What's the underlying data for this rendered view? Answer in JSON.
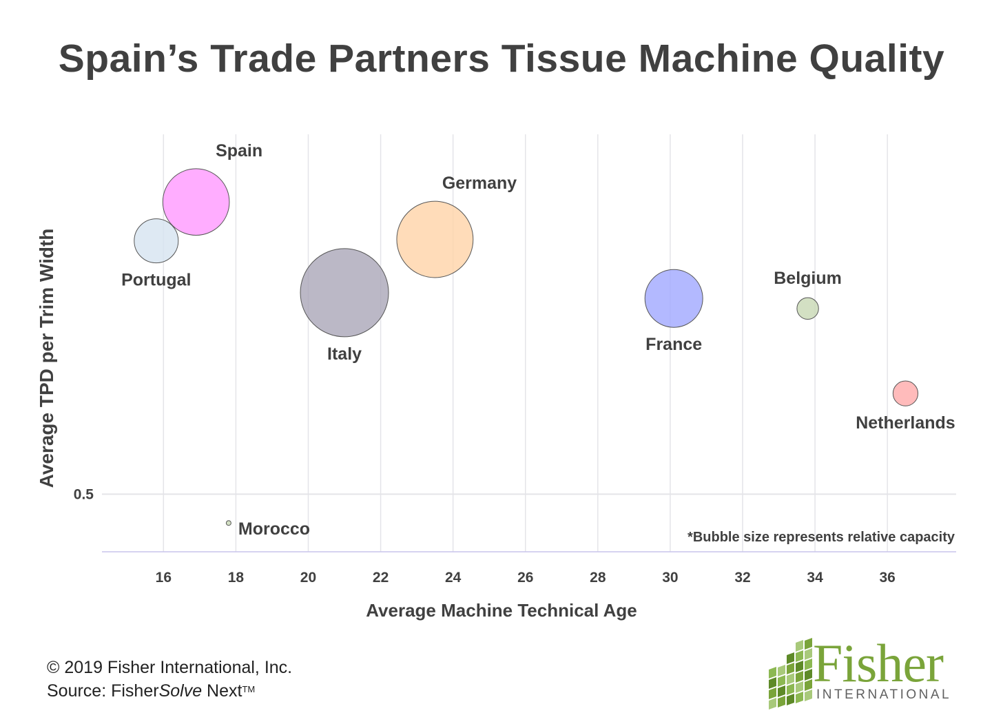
{
  "chart_data": {
    "type": "scatter",
    "title": "Spain’s Trade Partners Tissue Machine Quality",
    "xlabel": "Average Machine Technical Age",
    "ylabel": "Average TPD per Trim Width",
    "xticks": [
      16,
      18,
      20,
      22,
      24,
      26,
      28,
      30,
      32,
      34,
      36
    ],
    "xlim": [
      14.3,
      37.9
    ],
    "yticks": [
      0.5
    ],
    "ylim": [
      0.46,
      0.75
    ],
    "grid": true,
    "annotation": "*Bubble size represents relative capacity",
    "series": [
      {
        "name": "Spain",
        "x": 16.9,
        "y": 0.703,
        "size": 0.57,
        "color": "#ff99ff",
        "label_pos": "above-right"
      },
      {
        "name": "Portugal",
        "x": 15.8,
        "y": 0.676,
        "size": 0.25,
        "color": "#d6e4f0",
        "label_pos": "below"
      },
      {
        "name": "Italy",
        "x": 21.0,
        "y": 0.64,
        "size": 1.0,
        "color": "#aaa6b8",
        "label_pos": "below"
      },
      {
        "name": "Germany",
        "x": 23.5,
        "y": 0.677,
        "size": 0.75,
        "color": "#ffd3a8",
        "label_pos": "above-right"
      },
      {
        "name": "France",
        "x": 30.1,
        "y": 0.636,
        "size": 0.43,
        "color": "#a0a8ff",
        "label_pos": "below"
      },
      {
        "name": "Belgium",
        "x": 33.8,
        "y": 0.629,
        "size": 0.06,
        "color": "#c8d8b4",
        "label_pos": "above"
      },
      {
        "name": "Netherlands",
        "x": 36.5,
        "y": 0.57,
        "size": 0.08,
        "color": "#ffaaaa",
        "label_pos": "below"
      },
      {
        "name": "Morocco",
        "x": 17.8,
        "y": 0.48,
        "size": 0.002,
        "color": "#c8d8b4",
        "label_pos": "right"
      }
    ]
  },
  "footer": {
    "copyright": "© 2019 Fisher International, Inc.",
    "source_prefix": "Source: Fisher",
    "source_italic": "Solve",
    "source_suffix": " Next",
    "trademark": "TM"
  },
  "logo": {
    "word": "Fisher",
    "sub": "INTERNATIONAL",
    "color": "#7aa43a"
  }
}
